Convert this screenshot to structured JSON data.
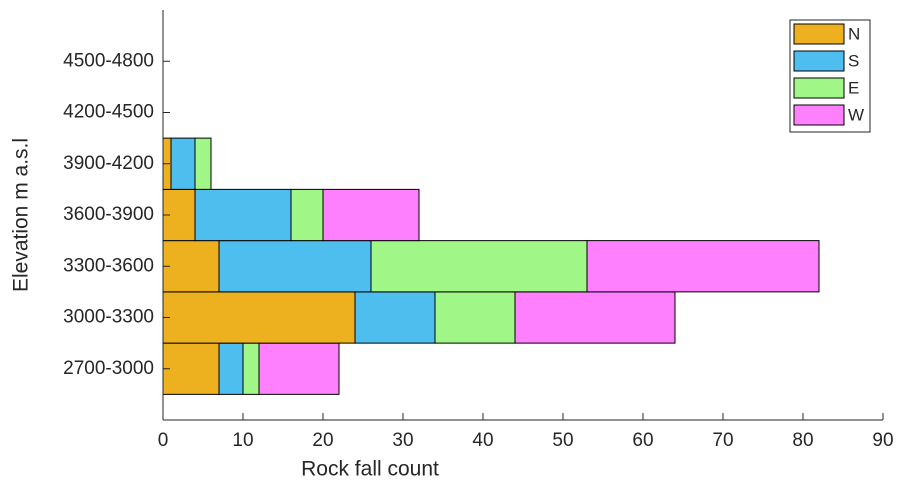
{
  "chart_data": {
    "type": "bar",
    "orientation": "horizontal",
    "stacked": true,
    "xlabel": "Rock fall count",
    "ylabel": "Elevation m a.s.l",
    "categories": [
      "2700-3000",
      "3000-3300",
      "3300-3600",
      "3600-3900",
      "3900-4200",
      "4200-4500",
      "4500-4800"
    ],
    "series": [
      {
        "name": "N",
        "color": "#edb120",
        "values": [
          7,
          24,
          7,
          4,
          1,
          0,
          0
        ]
      },
      {
        "name": "S",
        "color": "#4dbeee",
        "values": [
          3,
          10,
          19,
          12,
          3,
          0,
          0
        ]
      },
      {
        "name": "E",
        "color": "#a0f787",
        "values": [
          2,
          10,
          27,
          4,
          2,
          0,
          0
        ]
      },
      {
        "name": "W",
        "color": "#ff80ff",
        "values": [
          10,
          20,
          29,
          12,
          0,
          0,
          0
        ]
      }
    ],
    "xlim": [
      0,
      90
    ],
    "xticks": [
      0,
      10,
      20,
      30,
      40,
      50,
      60,
      70,
      80,
      90
    ],
    "legend": "top-right"
  }
}
